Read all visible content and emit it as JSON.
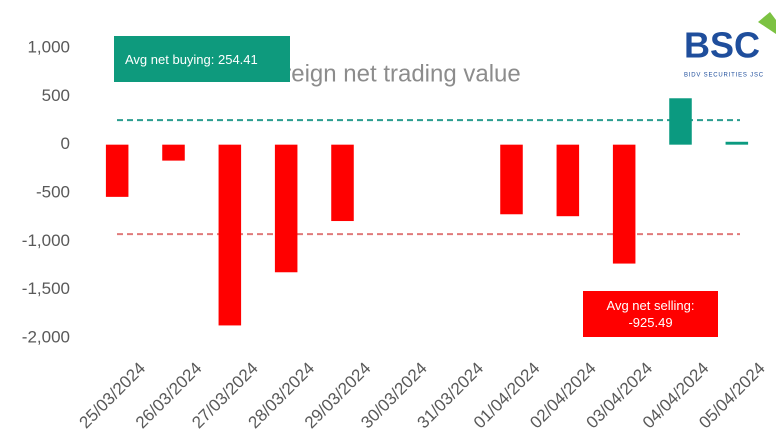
{
  "chart_data": {
    "type": "bar",
    "title": "Foreign net trading value",
    "categories": [
      "25/03/2024",
      "26/03/2024",
      "27/03/2024",
      "28/03/2024",
      "29/03/2024",
      "30/03/2024",
      "31/03/2024",
      "01/04/2024",
      "02/04/2024",
      "03/04/2024",
      "04/04/2024",
      "05/04/2024"
    ],
    "values": [
      -540,
      -165,
      -1870,
      -1320,
      -790,
      null,
      null,
      -720,
      -740,
      -1230,
      480,
      30
    ],
    "positive_color": "#0b9a80",
    "negative_color": "#ff0000",
    "ylim": [
      -2000,
      1000
    ],
    "yticks": [
      {
        "value": 1000,
        "label": "1,000"
      },
      500,
      0,
      -500,
      {
        "value": -1000,
        "label": "-1,000"
      },
      {
        "value": -1500,
        "label": "-1,500"
      },
      {
        "value": -2000,
        "label": "-2,000"
      }
    ],
    "grid": false,
    "reference_lines": [
      {
        "value": 254.41,
        "label": "Avg net buying: 254.41",
        "color": "#2a9d8f"
      },
      {
        "value": -925.49,
        "label": "Avg net selling: -925.49",
        "color": "#e07a7a"
      }
    ]
  },
  "logo": {
    "name": "BSC",
    "subtitle": "BIDV SECURITIES JSC"
  }
}
